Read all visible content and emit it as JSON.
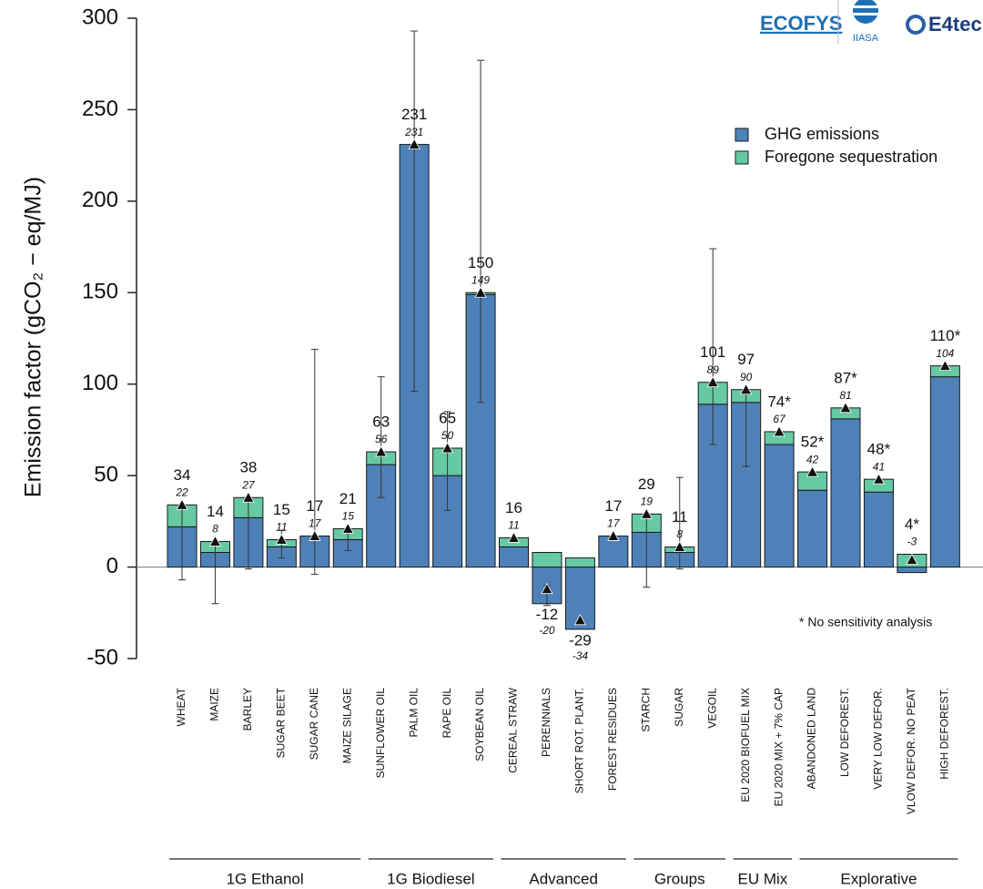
{
  "chart_data": {
    "type": "bar",
    "y_label": "Emission factor (gCO₂ − eq/MJ)",
    "categories": [
      "WHEAT",
      "MAIZE",
      "BARLEY",
      "SUGAR BEET",
      "SUGAR CANE",
      "MAIZE SILAGE",
      "SUNFLOWER OIL",
      "PALM OIL",
      "RAPE OIL",
      "SOYBEAN OIL",
      "CEREAL STRAW",
      "PERENNIALS",
      "SHORT ROT. PLANT.",
      "FOREST RESIDUES",
      "STARCH",
      "SUGAR",
      "VEGOIL",
      "EU 2020 BIOFUEL MIX",
      "EU 2020 MIX + 7% CAP",
      "ABANDONED LAND",
      "LOW DEFOREST.",
      "VERY LOW DEFOR.",
      "VLOW DEFOR. NO PEAT",
      "HIGH DEFOREST."
    ],
    "groups": [
      {
        "name": "1G Ethanol",
        "count": 6
      },
      {
        "name": "1G Biodiesel",
        "count": 4
      },
      {
        "name": "Advanced",
        "count": 4
      },
      {
        "name": "Groups",
        "count": 3
      },
      {
        "name": "EU Mix",
        "count": 2
      },
      {
        "name": "Explorative",
        "count": 5
      }
    ],
    "series": [
      {
        "name": "GHG emissions",
        "color": "#4f81b9",
        "values": [
          22,
          8,
          27,
          11,
          17,
          15,
          56,
          231,
          50,
          149,
          11,
          -20,
          -34,
          17,
          19,
          8,
          89,
          90,
          67,
          42,
          81,
          41,
          -3,
          104
        ]
      },
      {
        "name": "Foregone sequestration",
        "color": "#66c9a4",
        "values": [
          12,
          6,
          11,
          4,
          0,
          6,
          7,
          0,
          15,
          1,
          5,
          8,
          5,
          0,
          10,
          3,
          12,
          7,
          7,
          10,
          6,
          7,
          7,
          6
        ]
      }
    ],
    "totals": {
      "values": [
        34,
        14,
        38,
        15,
        17,
        21,
        63,
        231,
        65,
        150,
        16,
        -12,
        -29,
        17,
        29,
        11,
        101,
        97,
        74,
        52,
        87,
        48,
        4,
        110
      ],
      "value_labels": [
        "34",
        "14",
        "38",
        "15",
        "17",
        "21",
        "63",
        "231",
        "65",
        "150",
        "16",
        "-12",
        "-29",
        "17",
        "29",
        "11",
        "101",
        "97",
        "74*",
        "52*",
        "87*",
        "48*",
        "4*",
        "110*"
      ]
    },
    "errors": [
      [
        -7,
        34
      ],
      [
        -20,
        14
      ],
      [
        -1,
        38
      ],
      [
        5,
        20
      ],
      [
        -4,
        119
      ],
      [
        9,
        21
      ],
      [
        38,
        104
      ],
      [
        96,
        293
      ],
      [
        31,
        85
      ],
      [
        90,
        277
      ],
      null,
      [
        -21,
        -10
      ],
      null,
      null,
      [
        -11,
        29
      ],
      [
        -1,
        49
      ],
      [
        67,
        174
      ],
      [
        55,
        97
      ],
      null,
      null,
      null,
      null,
      null,
      null
    ],
    "ylim": [
      -50,
      300
    ],
    "yticks": [
      -50,
      0,
      50,
      100,
      150,
      200,
      250,
      300
    ],
    "legend": "top-right",
    "footnote": "* No sensitivity analysis",
    "logos": [
      "ECOFYS",
      "IIASA",
      "E4tech"
    ]
  }
}
